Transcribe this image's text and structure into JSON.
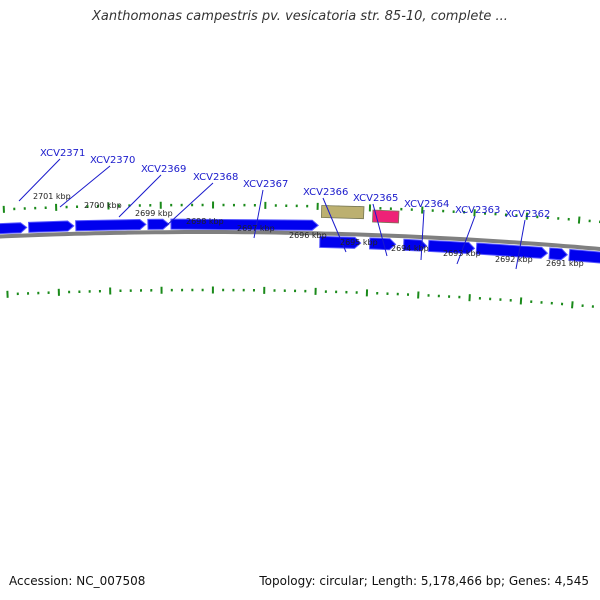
{
  "title": "Xanthomonas campestris pv. vesicatoria str. 85-10, complete ...",
  "footer": {
    "accession": "Accession: NC_007508",
    "summary": "Topology: circular; Length: 5,178,466 bp; Genes: 4,545"
  },
  "colors": {
    "gene": "#0000ee",
    "gene_highlight": "#5555ff",
    "backbone": "#808080",
    "tick": "#1a8a1a",
    "label_line": "#1a1acc",
    "olive_feature": "#bcb070",
    "pink_feature": "#ee2277"
  },
  "gene_labels": [
    "XCV2371",
    "XCV2370",
    "XCV2369",
    "XCV2368",
    "XCV2367",
    "XCV2366",
    "XCV2365",
    "XCV2364",
    "XCV2363",
    "XCV2362"
  ],
  "ruler_labels": [
    "2701 kbp",
    "2700 kbp",
    "2699 kbp",
    "2698 kbp",
    "2697 kbp",
    "2696 kbp",
    "2695 kbp",
    "2694 kbp",
    "2693 kbp",
    "2692 kbp",
    "2691 kbp"
  ]
}
